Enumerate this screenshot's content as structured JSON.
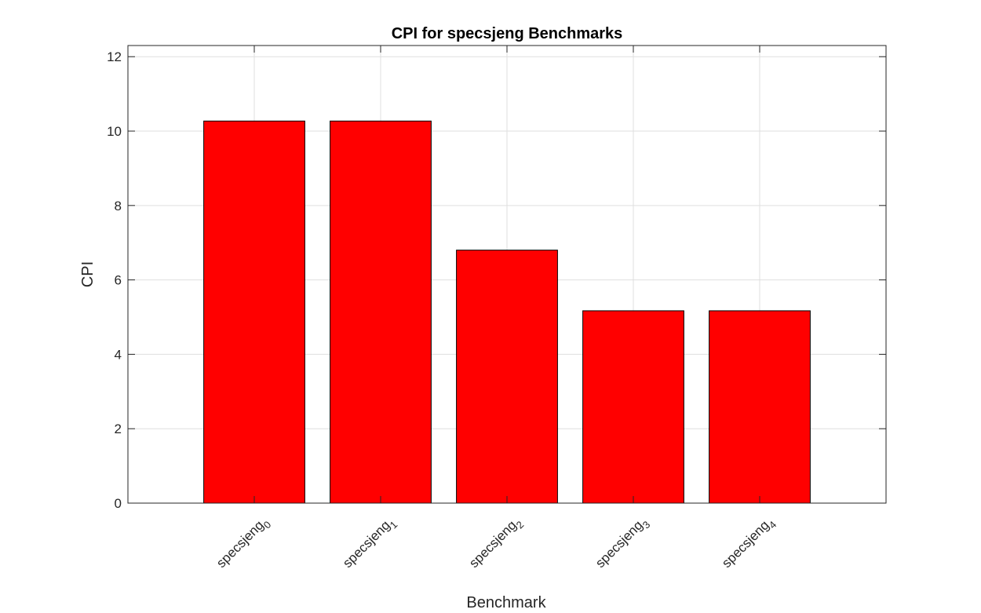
{
  "chart_data": {
    "type": "bar",
    "title": "CPI for specsjeng Benchmarks",
    "xlabel": "Benchmark",
    "ylabel": "CPI",
    "categories": [
      {
        "base": "specsjeng",
        "sub": "0"
      },
      {
        "base": "specsjeng",
        "sub": "1"
      },
      {
        "base": "specsjeng",
        "sub": "2"
      },
      {
        "base": "specsjeng",
        "sub": "3"
      },
      {
        "base": "specsjeng",
        "sub": "4"
      }
    ],
    "values": [
      10.27,
      10.27,
      6.8,
      5.17,
      5.17
    ],
    "ylim": [
      0,
      12.3
    ],
    "yticks": [
      0,
      2,
      4,
      6,
      8,
      10,
      12
    ],
    "xlim": [
      0,
      6
    ],
    "grid": true,
    "bar_color": "#ff0000",
    "bar_edge_color": "#000000"
  }
}
